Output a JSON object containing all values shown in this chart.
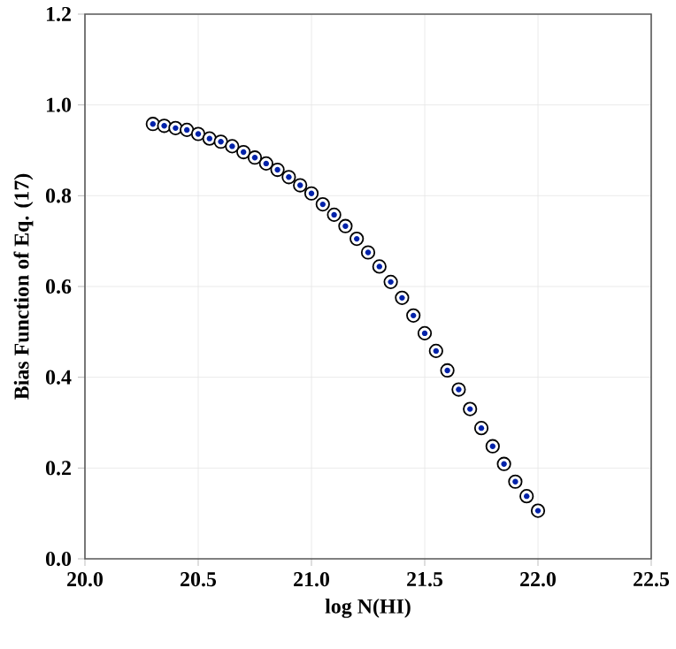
{
  "chart_data": {
    "type": "scatter",
    "xlabel": "log N(HI)",
    "ylabel": "Bias Function of Eq. (17)",
    "x": [
      20.3,
      20.35,
      20.4,
      20.45,
      20.5,
      20.55,
      20.6,
      20.65,
      20.7,
      20.75,
      20.8,
      20.85,
      20.9,
      20.95,
      21.0,
      21.05,
      21.1,
      21.15,
      21.2,
      21.25,
      21.3,
      21.35,
      21.4,
      21.45,
      21.5,
      21.55,
      21.6,
      21.65,
      21.7,
      21.75,
      21.8,
      21.85,
      21.9,
      21.95,
      22.0
    ],
    "series": [
      {
        "color": "#0022aa",
        "values": [
          0.958,
          0.954,
          0.949,
          0.945,
          0.936,
          0.926,
          0.919,
          0.909,
          0.896,
          0.884,
          0.871,
          0.857,
          0.841,
          0.823,
          0.805,
          0.781,
          0.758,
          0.733,
          0.705,
          0.675,
          0.644,
          0.61,
          0.575,
          0.536,
          0.497,
          0.458,
          0.415,
          0.373,
          0.33,
          0.288,
          0.248,
          0.209,
          0.17,
          0.138,
          0.106
        ]
      }
    ],
    "xlim": [
      20.0,
      22.5
    ],
    "ylim": [
      0.0,
      1.2
    ],
    "xticks": [
      {
        "value": 20.0,
        "label": "20.0"
      },
      {
        "value": 20.5,
        "label": "20.5"
      },
      {
        "value": 21.0,
        "label": "21.0"
      },
      {
        "value": 21.5,
        "label": "21.5"
      },
      {
        "value": 22.0,
        "label": "22.0"
      },
      {
        "value": 22.5,
        "label": "22.5"
      }
    ],
    "yticks": [
      {
        "value": 0.0,
        "label": "0.0"
      },
      {
        "value": 0.2,
        "label": "0.2"
      },
      {
        "value": 0.4,
        "label": "0.4"
      },
      {
        "value": 0.6,
        "label": "0.6"
      },
      {
        "value": 0.8,
        "label": "0.8"
      },
      {
        "value": 1.0,
        "label": "1.0"
      },
      {
        "value": 1.2,
        "label": "1.2"
      }
    ],
    "grid": true,
    "marker": "circle"
  }
}
